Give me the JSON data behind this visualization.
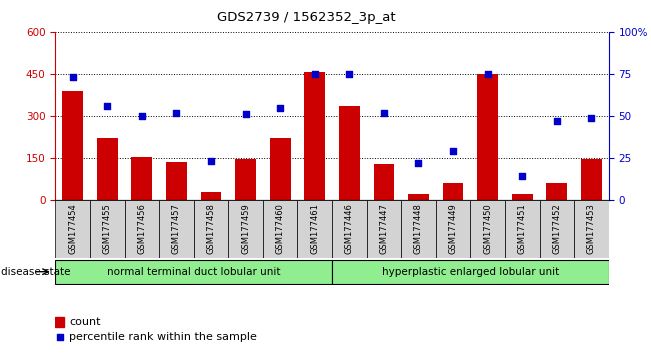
{
  "title": "GDS2739 / 1562352_3p_at",
  "samples": [
    "GSM177454",
    "GSM177455",
    "GSM177456",
    "GSM177457",
    "GSM177458",
    "GSM177459",
    "GSM177460",
    "GSM177461",
    "GSM177446",
    "GSM177447",
    "GSM177448",
    "GSM177449",
    "GSM177450",
    "GSM177451",
    "GSM177452",
    "GSM177453"
  ],
  "counts": [
    390,
    220,
    155,
    135,
    30,
    145,
    220,
    455,
    335,
    130,
    20,
    60,
    450,
    20,
    60,
    148
  ],
  "percentiles": [
    73,
    56,
    50,
    52,
    23,
    51,
    55,
    75,
    75,
    52,
    22,
    29,
    75,
    14,
    47,
    49
  ],
  "group1_label": "normal terminal duct lobular unit",
  "group1_count": 8,
  "group2_label": "hyperplastic enlarged lobular unit",
  "group2_count": 8,
  "disease_state_label": "disease state",
  "count_label": "count",
  "percentile_label": "percentile rank within the sample",
  "ylim_left": [
    0,
    600
  ],
  "ylim_right": [
    0,
    100
  ],
  "yticks_left": [
    0,
    150,
    300,
    450,
    600
  ],
  "yticks_right": [
    0,
    25,
    50,
    75,
    100
  ],
  "ytick_labels_right": [
    "0",
    "25",
    "50",
    "75",
    "100%"
  ],
  "bar_color": "#cc0000",
  "dot_color": "#0000cc",
  "group_color": "#90EE90",
  "tick_bg_color": "#d3d3d3",
  "bar_width": 0.6
}
